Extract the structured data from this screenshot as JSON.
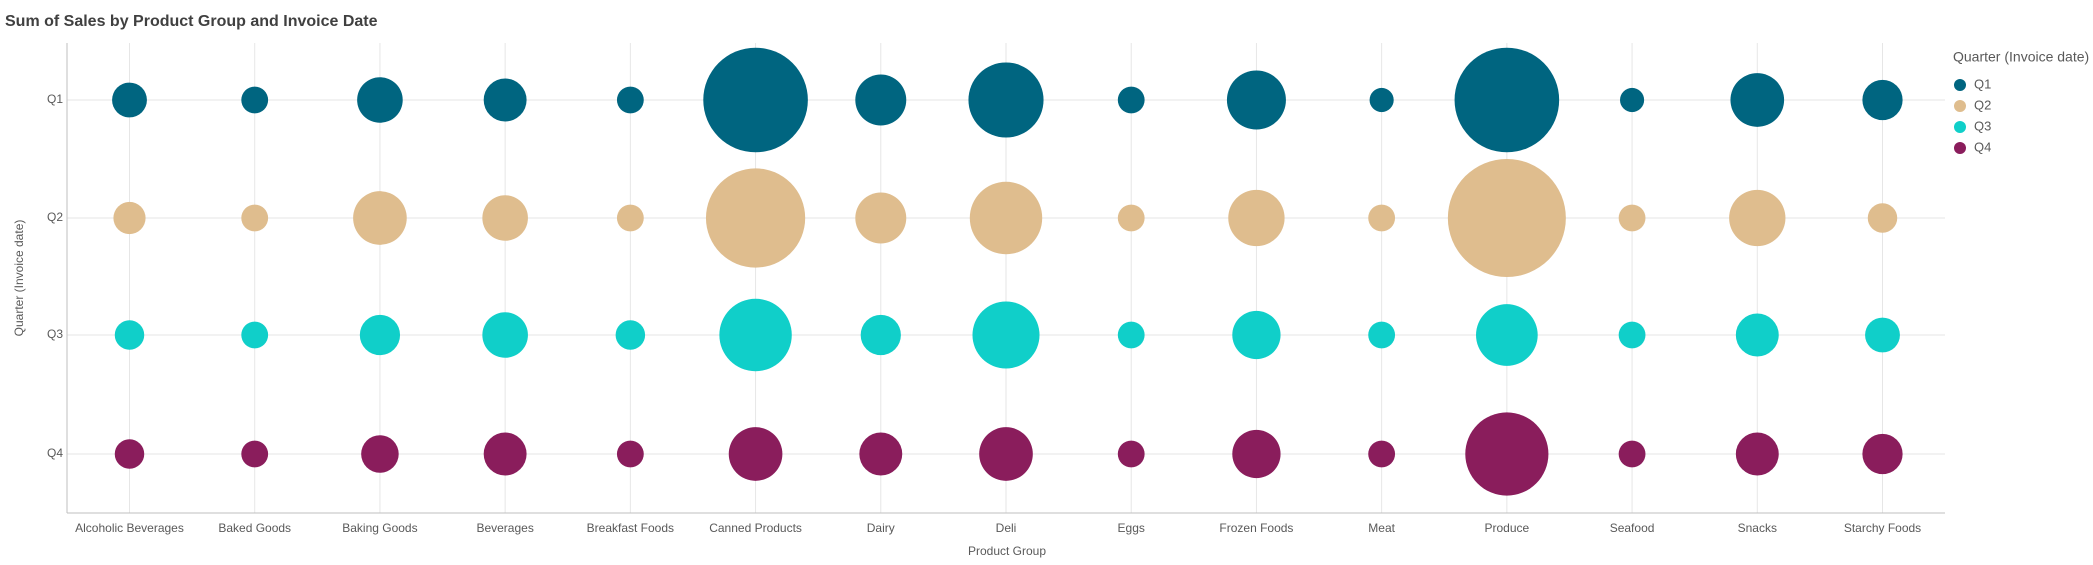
{
  "chart_data": {
    "type": "bubble",
    "title": "Sum of Sales by Product Group and Invoice Date",
    "x_label": "Product Group",
    "y_label": "Quarter (Invoice date)",
    "legend_title": "Quarter (Invoice date)",
    "legend_position": "right",
    "grid": true,
    "categories": [
      "Alcoholic Beverages",
      "Baked Goods",
      "Baking Goods",
      "Beverages",
      "Breakfast Foods",
      "Canned Products",
      "Dairy",
      "Deli",
      "Eggs",
      "Frozen Foods",
      "Meat",
      "Produce",
      "Seafood",
      "Snacks",
      "Starchy Foods"
    ],
    "y_categories": [
      "Q1",
      "Q2",
      "Q3",
      "Q4"
    ],
    "series": [
      {
        "name": "Q1",
        "color": "#006580",
        "values": [
          169,
          100,
          289,
          256,
          100,
          1521,
          361,
          784,
          100,
          484,
          81,
          1521,
          81,
          400,
          225
        ]
      },
      {
        "name": "Q2",
        "color": "#dfbd8e",
        "values": [
          144,
          100,
          400,
          289,
          100,
          1369,
          361,
          729,
          100,
          441,
          100,
          1936,
          100,
          441,
          121
        ]
      },
      {
        "name": "Q3",
        "color": "#10cfc9",
        "values": [
          121,
          100,
          225,
          289,
          121,
          729,
          225,
          625,
          100,
          324,
          100,
          529,
          100,
          256,
          169
        ]
      },
      {
        "name": "Q4",
        "color": "#8a1d5c",
        "values": [
          121,
          100,
          196,
          256,
          100,
          400,
          256,
          400,
          100,
          324,
          100,
          961,
          100,
          256,
          225
        ]
      }
    ]
  }
}
